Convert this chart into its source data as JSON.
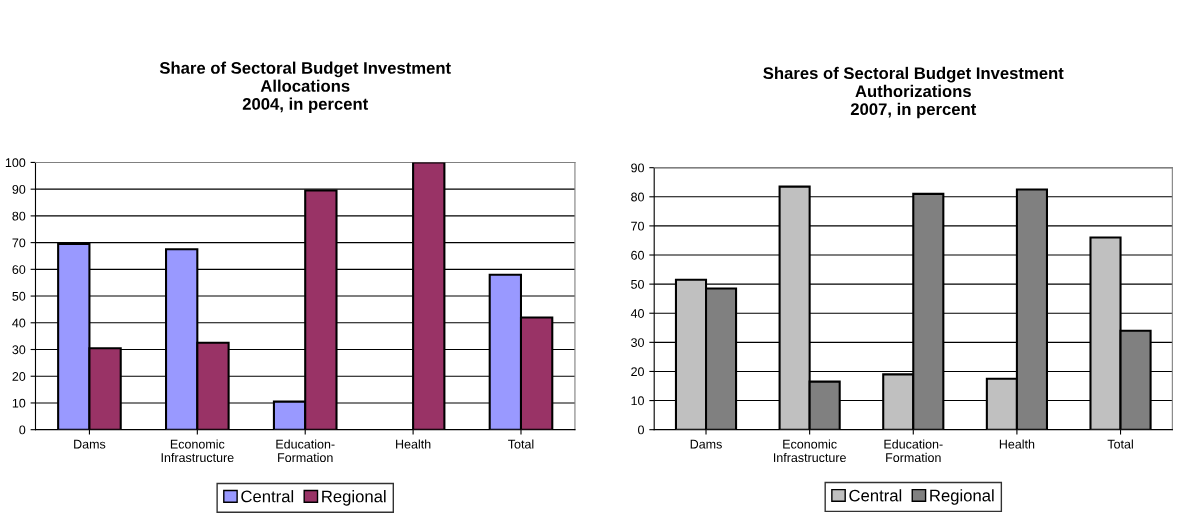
{
  "chart_data": [
    {
      "type": "bar",
      "title": "Share of Sectoral Budget Investment\nAllocations\n2004, in percent",
      "categories": [
        "Dams",
        "Economic\nInfrastructure",
        "Education-\nFormation",
        "Health",
        "Total"
      ],
      "series": [
        {
          "name": "Central",
          "color": "#9999ff",
          "values": [
            69.5,
            67.5,
            10.5,
            0,
            58
          ]
        },
        {
          "name": "Regional",
          "color": "#993366",
          "values": [
            30.5,
            32.5,
            89.5,
            100,
            42
          ]
        }
      ],
      "ylim": [
        0,
        100
      ],
      "yticks": [
        0,
        10,
        20,
        30,
        40,
        50,
        60,
        70,
        80,
        90,
        100
      ],
      "grid": "y",
      "legend": "bottom"
    },
    {
      "type": "bar",
      "title": "Shares of Sectoral Budget Investment\nAuthorizations\n2007, in percent",
      "categories": [
        "Dams",
        "Economic\nInfrastructure",
        "Education-\nFormation",
        "Health",
        "Total"
      ],
      "series": [
        {
          "name": "Central",
          "color": "#c0c0c0",
          "values": [
            51.5,
            83.5,
            19,
            17.5,
            66
          ]
        },
        {
          "name": "Regional",
          "color": "#808080",
          "values": [
            48.5,
            16.5,
            81,
            82.5,
            34
          ]
        }
      ],
      "ylim": [
        0,
        90
      ],
      "yticks": [
        0,
        10,
        20,
        30,
        40,
        50,
        60,
        70,
        80,
        90
      ],
      "grid": "y",
      "legend": "bottom"
    }
  ]
}
